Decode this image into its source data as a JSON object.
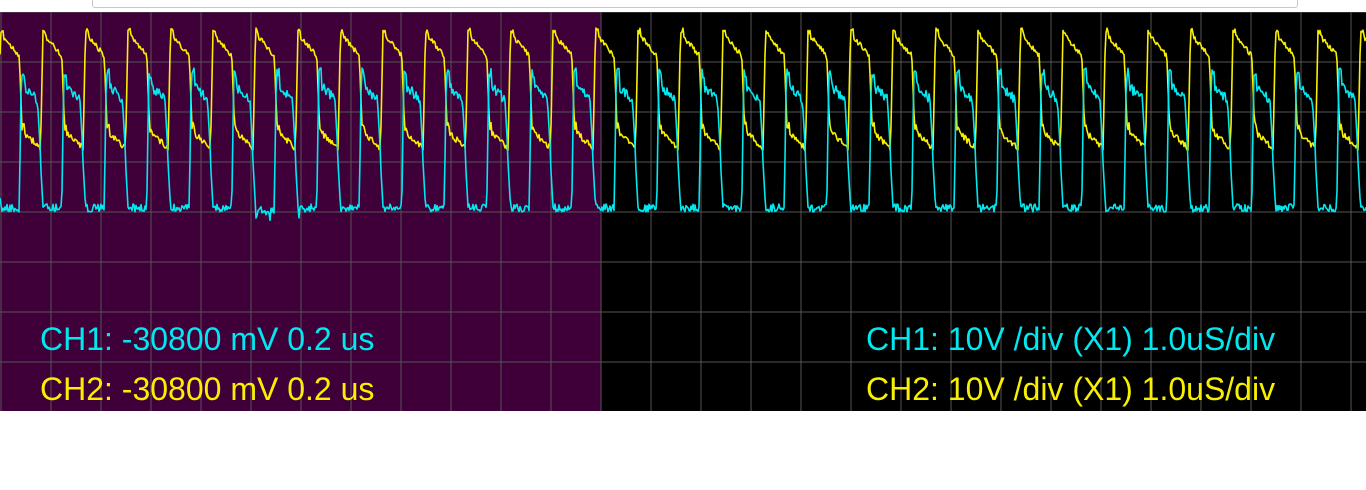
{
  "colors": {
    "background_left": "#3f0039",
    "background_right": "#000000",
    "grid": "#555555",
    "ch1": "#00e8f0",
    "ch2": "#f8f000",
    "page": "#ffffff"
  },
  "scope": {
    "horizontal_divisions": 27,
    "vertical_divisions": 8,
    "left_region_divisions": 12,
    "ch1_period_divisions": 0.85,
    "ch2_period_divisions": 0.85
  },
  "cursor_readout": {
    "ch1": "CH1: -30800 mV 0.2 us",
    "ch2": "CH2: -30800 mV 0.2 us"
  },
  "settings_readout": {
    "ch1": "CH1: 10V /div (X1) 1.0uS/div",
    "ch2": "CH2: 10V /div (X1) 1.0uS/div"
  }
}
